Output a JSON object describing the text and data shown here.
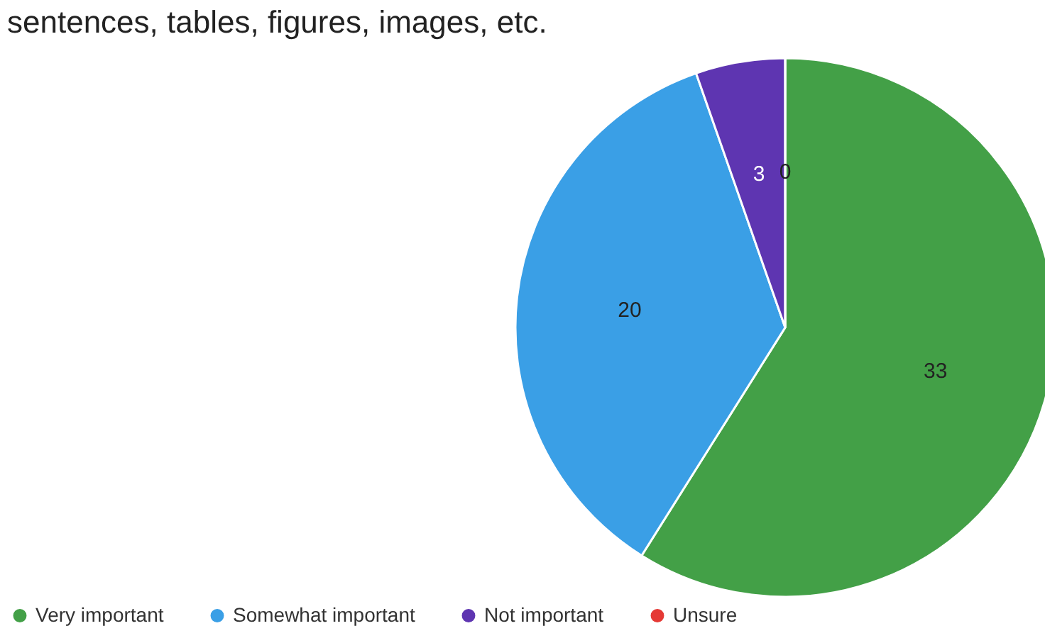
{
  "chart_data": {
    "type": "pie",
    "title": "sentences, tables, figures, images, etc.",
    "categories": [
      "Very important",
      "Somewhat important",
      "Not important",
      "Unsure"
    ],
    "values": [
      33,
      20,
      3,
      0
    ],
    "colors": [
      "#43a047",
      "#3a9fe6",
      "#5e35b1",
      "#e53935"
    ],
    "value_labels": [
      "33",
      "20",
      "3",
      "0"
    ],
    "legend": "bottom left"
  }
}
